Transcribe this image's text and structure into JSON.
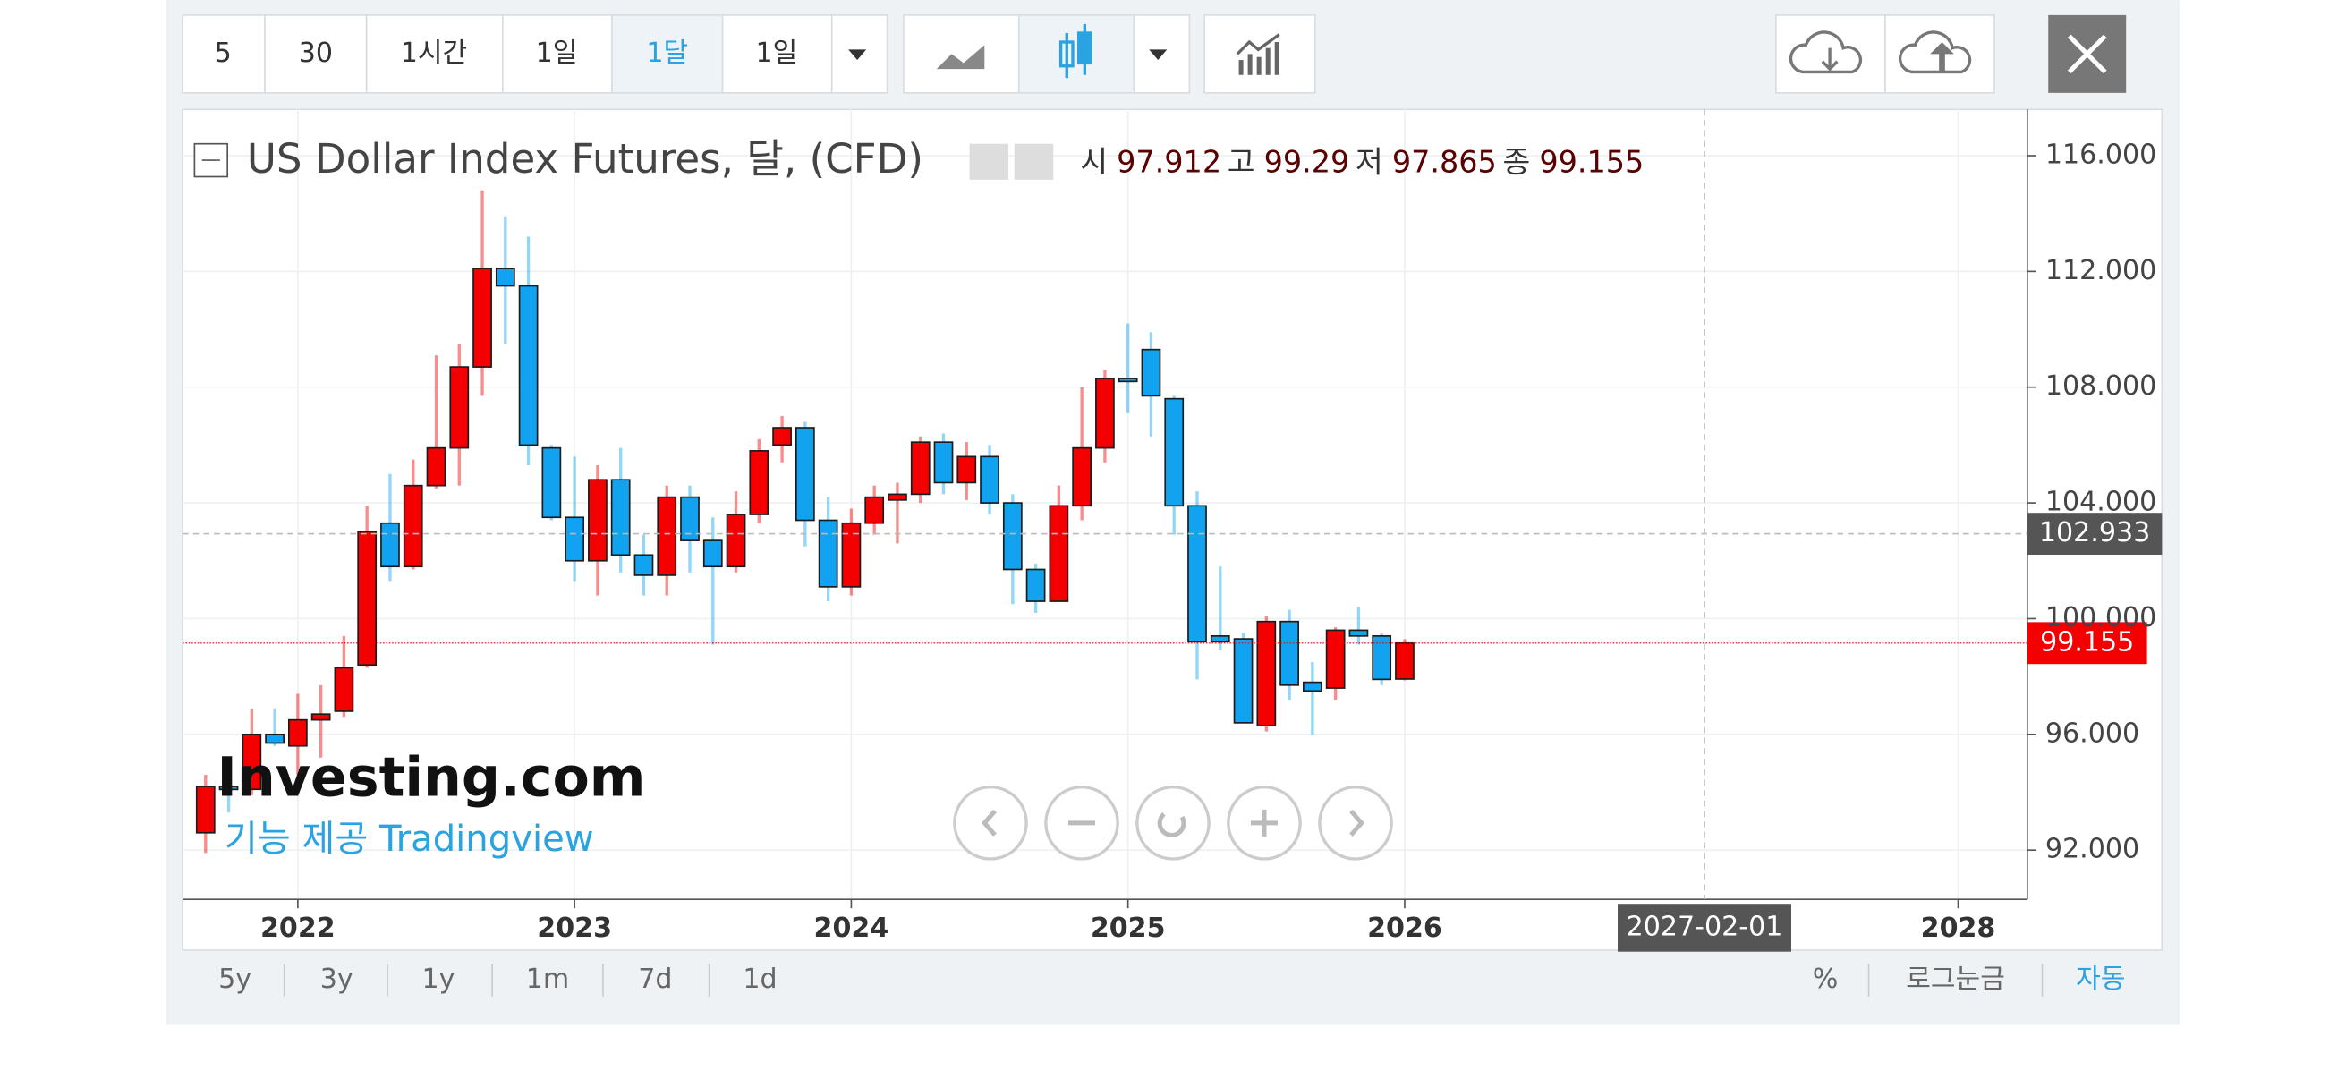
{
  "toolbar": {
    "intervals": [
      "5",
      "30",
      "1시간",
      "1일",
      "1달",
      "1일"
    ]
  },
  "chart_data": {
    "type": "candlestick",
    "title": "US Dollar Index Futures, 달, (CFD)",
    "legend_labels": {
      "open": "시",
      "high": "고",
      "low": "저",
      "close": "종"
    },
    "x": [
      "2021-09",
      "2021-10",
      "2021-11",
      "2021-12",
      "2022-01",
      "2022-02",
      "2022-03",
      "2022-04",
      "2022-05",
      "2022-06",
      "2022-07",
      "2022-08",
      "2022-09",
      "2022-10",
      "2022-11",
      "2022-12",
      "2023-01",
      "2023-02",
      "2023-03",
      "2023-04",
      "2023-05",
      "2023-06",
      "2023-07",
      "2023-08",
      "2023-09",
      "2023-10",
      "2023-11",
      "2023-12",
      "2024-01",
      "2024-02",
      "2024-03",
      "2024-04",
      "2024-05",
      "2024-06",
      "2024-07",
      "2024-08",
      "2024-09",
      "2024-10",
      "2024-11",
      "2024-12",
      "2025-01",
      "2025-02",
      "2025-03",
      "2025-04",
      "2025-05",
      "2025-06",
      "2025-07",
      "2025-08",
      "2025-09",
      "2025-10",
      "2025-11",
      "2025-12",
      "2026-01"
    ],
    "open": [
      92.6,
      94.2,
      94.1,
      96.0,
      95.6,
      96.5,
      96.8,
      98.4,
      103.3,
      101.8,
      104.6,
      105.9,
      108.7,
      112.1,
      111.5,
      105.9,
      103.5,
      102.0,
      104.8,
      102.2,
      101.5,
      104.2,
      102.7,
      101.8,
      103.6,
      106.0,
      106.6,
      103.4,
      101.1,
      103.3,
      104.1,
      104.3,
      106.1,
      104.7,
      105.6,
      104.0,
      101.7,
      100.6,
      103.9,
      105.9,
      108.3,
      109.3,
      107.6,
      103.9,
      99.4,
      99.3,
      96.3,
      99.9,
      97.8,
      97.6,
      99.6,
      99.4,
      97.912
    ],
    "high": [
      94.6,
      94.6,
      96.9,
      96.9,
      97.4,
      97.7,
      99.4,
      103.9,
      105.0,
      105.5,
      109.1,
      109.5,
      114.8,
      113.9,
      113.2,
      106.0,
      105.6,
      105.3,
      105.9,
      102.9,
      104.6,
      104.6,
      103.5,
      104.4,
      106.2,
      107.0,
      106.8,
      104.2,
      103.8,
      104.6,
      104.7,
      106.3,
      106.4,
      106.1,
      106.0,
      104.3,
      101.9,
      104.6,
      108.0,
      108.6,
      110.2,
      109.9,
      107.7,
      104.4,
      101.8,
      99.5,
      100.1,
      100.3,
      98.5,
      99.7,
      100.4,
      99.5,
      99.29
    ],
    "low": [
      91.9,
      93.3,
      93.9,
      95.6,
      94.6,
      95.2,
      96.6,
      98.3,
      101.3,
      101.7,
      104.5,
      104.6,
      107.7,
      109.5,
      105.3,
      103.4,
      101.3,
      100.8,
      101.6,
      100.8,
      100.8,
      101.6,
      99.1,
      101.6,
      103.3,
      105.4,
      102.5,
      100.6,
      100.8,
      102.9,
      102.6,
      104.0,
      104.3,
      104.1,
      103.6,
      100.5,
      100.2,
      100.6,
      103.4,
      105.4,
      107.1,
      106.3,
      102.9,
      97.9,
      98.9,
      96.4,
      96.1,
      97.2,
      96.0,
      97.2,
      99.1,
      97.7,
      97.865
    ],
    "close": [
      94.2,
      94.1,
      96.0,
      95.7,
      96.5,
      96.7,
      98.3,
      103.0,
      101.8,
      104.6,
      105.9,
      108.7,
      112.1,
      111.5,
      106.0,
      103.5,
      102.0,
      104.8,
      102.2,
      101.5,
      104.2,
      102.7,
      101.8,
      103.6,
      105.8,
      106.6,
      103.4,
      101.1,
      103.3,
      104.2,
      104.3,
      106.1,
      104.7,
      105.6,
      104.0,
      101.7,
      100.6,
      103.9,
      105.9,
      108.3,
      108.2,
      107.7,
      103.9,
      99.2,
      99.2,
      96.4,
      99.9,
      97.7,
      97.5,
      99.6,
      99.4,
      97.9,
      99.155
    ],
    "up_color": "#f40000",
    "down_color": "#12a3f0",
    "xlim": [
      "2021-08",
      "2028-04"
    ],
    "xticks": [
      2022,
      2023,
      2024,
      2025,
      2026,
      2028
    ],
    "ylim": [
      90.3,
      117.6
    ],
    "yticks": [
      {
        "value": 92,
        "label": "92.000"
      },
      {
        "value": 96,
        "label": "96.000"
      },
      {
        "value": 100,
        "label": "100.000"
      },
      {
        "value": 104,
        "label": "104.000"
      },
      {
        "value": 108,
        "label": "108.000"
      },
      {
        "value": 112,
        "label": "112.000"
      },
      {
        "value": 116,
        "label": "116.000"
      }
    ],
    "grid": true,
    "crosshair": {
      "y": 102.933,
      "x": "2027-02-01"
    }
  },
  "watermark": {
    "logo": "Investing.com",
    "credit": "기능 제공 Tradingview"
  },
  "ranges": [
    "5y",
    "3y",
    "1y",
    "1m",
    "7d",
    "1d"
  ],
  "scale_options": [
    "%",
    "로그눈금",
    "자동"
  ]
}
